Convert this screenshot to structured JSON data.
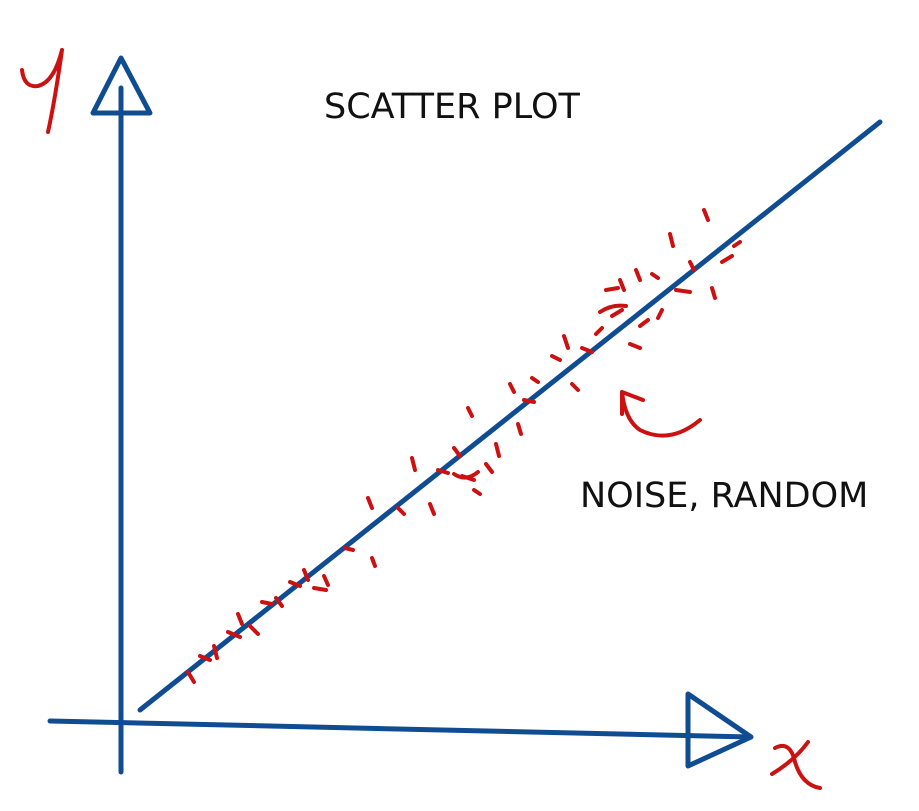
{
  "diagram": {
    "title": "SCATTER PLOT",
    "annotation": "NOISE, RANDOM",
    "x_axis_label": "x",
    "y_axis_label": "Y",
    "colors": {
      "axis": "#0f4c92",
      "points": "#cc1111",
      "text": "#111111"
    },
    "icons": {
      "x_arrowhead": "triangle-right-icon",
      "y_arrowhead": "triangle-up-icon",
      "annotation_arrow": "curved-arrow-icon"
    }
  }
}
